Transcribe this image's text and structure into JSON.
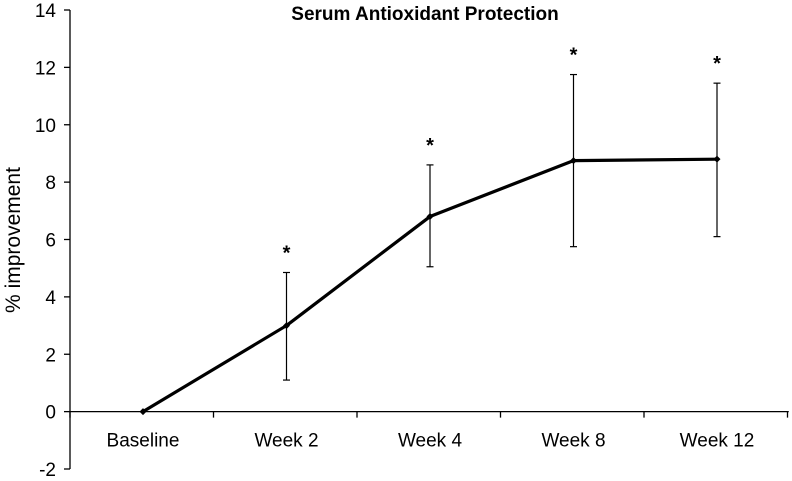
{
  "chart_data": {
    "type": "line",
    "title": "Serum Antioxidant Protection",
    "xlabel": "",
    "ylabel": "% improvement",
    "categories": [
      "Baseline",
      "Week 2",
      "Week 4",
      "Week 8",
      "Week 12"
    ],
    "series": [
      {
        "values": [
          0,
          3.0,
          6.8,
          8.75,
          8.8
        ],
        "error_upper": [
          0,
          4.85,
          8.6,
          11.75,
          11.45
        ],
        "error_lower": [
          0,
          1.1,
          5.05,
          5.75,
          6.1
        ]
      }
    ],
    "significance_markers": [
      "",
      "*",
      "*",
      "*",
      "*"
    ],
    "ylim": [
      -2,
      14
    ],
    "yticks": [
      -2,
      0,
      2,
      4,
      6,
      8,
      10,
      12,
      14
    ],
    "ytick_labels": [
      "-2",
      "0",
      "2",
      "4",
      "6",
      "8",
      "10",
      "12",
      "14"
    ],
    "grid": false,
    "legend": "none",
    "colors": {
      "line": "#000000",
      "axis": "#000000",
      "background": "#ffffff"
    }
  }
}
